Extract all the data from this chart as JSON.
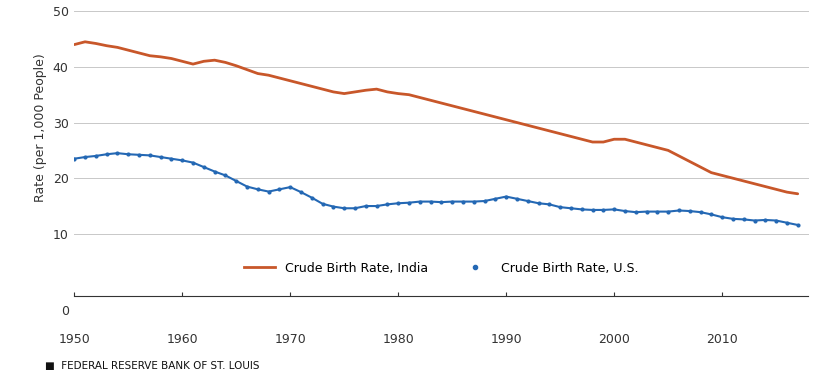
{
  "india_years": [
    1950,
    1951,
    1952,
    1953,
    1954,
    1955,
    1956,
    1957,
    1958,
    1959,
    1960,
    1961,
    1962,
    1963,
    1964,
    1965,
    1966,
    1967,
    1968,
    1969,
    1970,
    1971,
    1972,
    1973,
    1974,
    1975,
    1976,
    1977,
    1978,
    1979,
    1980,
    1981,
    1982,
    1983,
    1984,
    1985,
    1986,
    1987,
    1988,
    1989,
    1990,
    1991,
    1992,
    1993,
    1994,
    1995,
    1996,
    1997,
    1998,
    1999,
    2000,
    2001,
    2002,
    2003,
    2004,
    2005,
    2006,
    2007,
    2008,
    2009,
    2010,
    2011,
    2012,
    2013,
    2014,
    2015,
    2016,
    2017
  ],
  "india_values": [
    44.0,
    44.5,
    44.2,
    43.8,
    43.5,
    43.0,
    42.5,
    42.0,
    41.8,
    41.5,
    41.0,
    40.5,
    41.0,
    41.2,
    40.8,
    40.2,
    39.5,
    38.8,
    38.5,
    38.0,
    37.5,
    37.0,
    36.5,
    36.0,
    35.5,
    35.2,
    35.5,
    35.8,
    36.0,
    35.5,
    35.2,
    35.0,
    34.5,
    34.0,
    33.5,
    33.0,
    32.5,
    32.0,
    31.5,
    31.0,
    30.5,
    30.0,
    29.5,
    29.0,
    28.5,
    28.0,
    27.5,
    27.0,
    26.5,
    26.5,
    27.0,
    27.0,
    26.5,
    26.0,
    25.5,
    25.0,
    24.0,
    23.0,
    22.0,
    21.0,
    20.5,
    20.0,
    19.5,
    19.0,
    18.5,
    18.0,
    17.5,
    17.2
  ],
  "us_years": [
    1950,
    1951,
    1952,
    1953,
    1954,
    1955,
    1956,
    1957,
    1958,
    1959,
    1960,
    1961,
    1962,
    1963,
    1964,
    1965,
    1966,
    1967,
    1968,
    1969,
    1970,
    1971,
    1972,
    1973,
    1974,
    1975,
    1976,
    1977,
    1978,
    1979,
    1980,
    1981,
    1982,
    1983,
    1984,
    1985,
    1986,
    1987,
    1988,
    1989,
    1990,
    1991,
    1992,
    1993,
    1994,
    1995,
    1996,
    1997,
    1998,
    1999,
    2000,
    2001,
    2002,
    2003,
    2004,
    2005,
    2006,
    2007,
    2008,
    2009,
    2010,
    2011,
    2012,
    2013,
    2014,
    2015,
    2016,
    2017
  ],
  "us_values": [
    23.5,
    23.8,
    24.0,
    24.3,
    24.5,
    24.3,
    24.2,
    24.1,
    23.8,
    23.5,
    23.2,
    22.8,
    22.0,
    21.2,
    20.5,
    19.5,
    18.5,
    18.0,
    17.6,
    18.0,
    18.4,
    17.5,
    16.5,
    15.4,
    14.9,
    14.6,
    14.6,
    15.0,
    15.0,
    15.3,
    15.5,
    15.6,
    15.8,
    15.8,
    15.7,
    15.8,
    15.8,
    15.8,
    15.9,
    16.3,
    16.7,
    16.3,
    15.9,
    15.5,
    15.3,
    14.8,
    14.6,
    14.4,
    14.3,
    14.3,
    14.4,
    14.1,
    13.9,
    14.0,
    14.0,
    14.0,
    14.2,
    14.1,
    13.9,
    13.5,
    13.0,
    12.7,
    12.6,
    12.4,
    12.5,
    12.4,
    12.0,
    11.6
  ],
  "india_color": "#c8572a",
  "us_color": "#2468b4",
  "ylabel": "Rate (per 1,000 People)",
  "ylim_main": [
    8,
    50
  ],
  "yticks_main": [
    10,
    20,
    30,
    40,
    50
  ],
  "xlim": [
    1950,
    2018
  ],
  "xticks": [
    1950,
    1960,
    1970,
    1980,
    1990,
    2000,
    2010
  ],
  "legend_india": "Crude Birth Rate, India",
  "legend_us": "Crude Birth Rate, U.S.",
  "footer": "■  FEDERAL RESERVE BANK OF ST. LOUIS",
  "background_color": "#ffffff",
  "grid_color": "#c8c8c8"
}
